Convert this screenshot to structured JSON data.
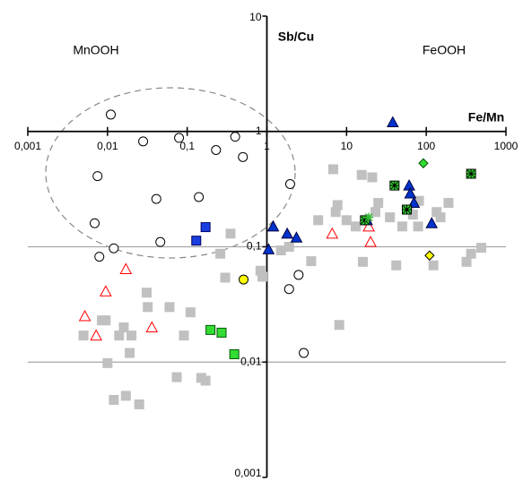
{
  "chart_data": {
    "type": "scatter",
    "x_label": "Fe/Mn",
    "y_label": "Sb/Cu",
    "annotations": [
      "MnOOH",
      "FeOOH"
    ],
    "log_x": true,
    "log_y": true,
    "grid": true,
    "xlim": [
      0.001,
      1000
    ],
    "ylim": [
      0.001,
      10
    ],
    "xticks": [
      {
        "value": 0.001,
        "label": "0,001"
      },
      {
        "value": 0.01,
        "label": "0,01"
      },
      {
        "value": 0.1,
        "label": "0,1"
      },
      1,
      10,
      100,
      1000
    ],
    "yticks": [
      {
        "value": 0.001,
        "label": "0,001"
      },
      {
        "value": 0.01,
        "label": "0,01"
      },
      {
        "value": 0.1,
        "label": "0,1"
      },
      1,
      10
    ],
    "series": [
      {
        "marker": "square",
        "color": "#c0c0c0",
        "edgecolor": "#c0c0c0",
        "x": [
          0.005,
          0.0085,
          0.0095,
          0.01,
          0.012,
          0.017,
          0.025,
          0.014,
          0.016,
          0.02,
          0.019,
          0.031,
          0.032,
          0.06,
          0.091,
          0.11,
          0.15,
          0.17,
          0.074,
          0.26,
          0.3,
          0.35,
          0.83,
          0.88,
          1.5,
          1.9,
          3.6,
          4.4,
          6.8,
          7.3,
          7.7,
          10,
          15.5,
          21,
          13,
          16,
          23,
          25,
          35,
          42,
          50,
          60,
          68,
          81,
          79,
          135,
          123,
          190,
          320,
          365,
          490,
          8.1,
          151
        ],
        "y": [
          0.017,
          0.023,
          0.023,
          0.0098,
          0.0047,
          0.0051,
          0.0043,
          0.017,
          0.02,
          0.017,
          0.012,
          0.04,
          0.03,
          0.03,
          0.017,
          0.027,
          0.0073,
          0.0069,
          0.0074,
          0.087,
          0.054,
          0.13,
          0.062,
          0.055,
          0.093,
          0.1,
          0.075,
          0.17,
          0.47,
          0.2,
          0.23,
          0.17,
          0.42,
          0.4,
          0.15,
          0.074,
          0.2,
          0.24,
          0.18,
          0.069,
          0.15,
          0.21,
          0.19,
          0.25,
          0.15,
          0.2,
          0.069,
          0.24,
          0.074,
          0.087,
          0.098,
          0.021,
          0.18
        ]
      },
      {
        "marker": "circle",
        "color": "#ffffff",
        "edgecolor": "#000000",
        "x": [
          0.011,
          0.0075,
          0.0069,
          0.0079,
          0.012,
          0.028,
          0.041,
          0.046,
          0.079,
          0.14,
          0.23,
          0.4,
          0.5,
          1.96,
          1.9,
          2.5,
          2.9
        ],
        "y": [
          1.4,
          0.41,
          0.16,
          0.082,
          0.097,
          0.82,
          0.26,
          0.11,
          0.88,
          0.27,
          0.69,
          0.9,
          0.6,
          0.35,
          0.043,
          0.057,
          0.012
        ]
      },
      {
        "marker": "triangle",
        "color": "#ffffff",
        "edgecolor": "#ff0000",
        "x": [
          0.017,
          0.0095,
          0.0052,
          0.0072,
          0.036,
          6.6,
          19,
          20
        ],
        "y": [
          0.064,
          0.041,
          0.025,
          0.017,
          0.02,
          0.13,
          0.15,
          0.11
        ]
      },
      {
        "marker": "triangle",
        "color": "#0033cc",
        "edgecolor": "#000040",
        "x": [
          38,
          1.2,
          1.8,
          2.35,
          1.05,
          61,
          63,
          70,
          117,
          18
        ],
        "y": [
          1.2,
          0.15,
          0.13,
          0.12,
          0.095,
          0.34,
          0.29,
          0.24,
          0.16,
          0.17
        ]
      },
      {
        "marker": "square",
        "color": "#1a3fe0",
        "edgecolor": "#000060",
        "x": [
          0.13,
          0.17
        ],
        "y": [
          0.113,
          0.148
        ]
      },
      {
        "marker": "square",
        "color": "#33dd33",
        "edgecolor": "#005500",
        "x": [
          0.196,
          0.27,
          0.39
        ],
        "y": [
          0.019,
          0.018,
          0.0117
        ]
      },
      {
        "marker": "square-star",
        "color": "#33dd33",
        "edgecolor": "#000000",
        "x": [
          40,
          57,
          17,
          365
        ],
        "y": [
          0.34,
          0.21,
          0.17,
          0.43
        ]
      },
      {
        "marker": "star",
        "color": "#33bb33",
        "edgecolor": "#33bb33",
        "x": [
          19
        ],
        "y": [
          0.18
        ]
      },
      {
        "marker": "diamond",
        "color": "#33dd33",
        "edgecolor": "#005500",
        "x": [
          92
        ],
        "y": [
          0.53
        ]
      },
      {
        "marker": "diamond",
        "color": "#ffff00",
        "edgecolor": "#000000",
        "x": [
          110
        ],
        "y": [
          0.084
        ]
      },
      {
        "marker": "circle",
        "color": "#ffff00",
        "edgecolor": "#000000",
        "x": [
          0.51
        ],
        "y": [
          0.052
        ]
      }
    ]
  }
}
